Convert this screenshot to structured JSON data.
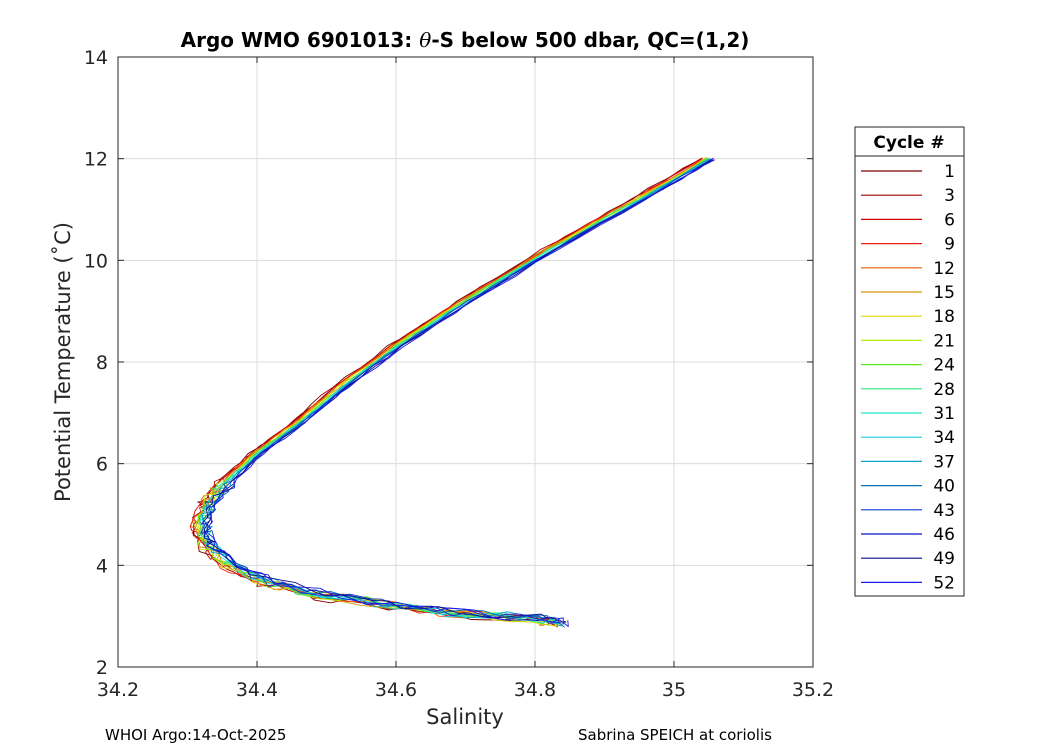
{
  "chart_data": {
    "type": "line",
    "title_parts": [
      "Argo WMO 6901013: ",
      "θ",
      "-S below 500 dbar,  QC=(1,2)"
    ],
    "xlabel": "Salinity",
    "ylabel": "Potential Temperature (˚C)",
    "xlim": [
      34.2,
      35.2
    ],
    "ylim": [
      2,
      14
    ],
    "x_ticks": [
      34.2,
      34.4,
      34.6,
      34.8,
      35,
      35.2
    ],
    "x_tick_labels": [
      "34.2",
      "34.4",
      "34.6",
      "34.8",
      "35",
      "35.2"
    ],
    "y_ticks": [
      2,
      4,
      6,
      8,
      10,
      12,
      14
    ],
    "y_tick_labels": [
      "2",
      "4",
      "6",
      "8",
      "10",
      "12",
      "14"
    ],
    "grid": true,
    "legend": {
      "title": "Cycle #",
      "placement": "right-outside",
      "entries": [
        {
          "label": "1",
          "color": "#7f0000"
        },
        {
          "label": "3",
          "color": "#a30000"
        },
        {
          "label": "6",
          "color": "#d40000"
        },
        {
          "label": "9",
          "color": "#e8220f"
        },
        {
          "label": "12",
          "color": "#f25a00"
        },
        {
          "label": "15",
          "color": "#d49a00"
        },
        {
          "label": "18",
          "color": "#e6d200"
        },
        {
          "label": "21",
          "color": "#b4ee00"
        },
        {
          "label": "24",
          "color": "#62e81a"
        },
        {
          "label": "28",
          "color": "#2ee87a"
        },
        {
          "label": "31",
          "color": "#1ee6c4"
        },
        {
          "label": "34",
          "color": "#14cbe6"
        },
        {
          "label": "37",
          "color": "#0aa6c8"
        },
        {
          "label": "40",
          "color": "#0a73b4"
        },
        {
          "label": "43",
          "color": "#0a3cd2"
        },
        {
          "label": "46",
          "color": "#0a14c8"
        },
        {
          "label": "49",
          "color": "#0a0a8c"
        },
        {
          "label": "52",
          "color": "#1a1ae6"
        }
      ]
    },
    "series_shape": [
      [
        35.05,
        12.0
      ],
      [
        34.95,
        11.2
      ],
      [
        34.82,
        10.2
      ],
      [
        34.7,
        9.2
      ],
      [
        34.6,
        8.3
      ],
      [
        34.52,
        7.5
      ],
      [
        34.46,
        6.8
      ],
      [
        34.4,
        6.2
      ],
      [
        34.36,
        5.7
      ],
      [
        34.33,
        5.2
      ],
      [
        34.32,
        4.8
      ],
      [
        34.33,
        4.4
      ],
      [
        34.36,
        4.0
      ],
      [
        34.42,
        3.65
      ],
      [
        34.5,
        3.4
      ],
      [
        34.6,
        3.2
      ],
      [
        34.7,
        3.05
      ],
      [
        34.8,
        2.95
      ],
      [
        34.84,
        2.85
      ]
    ]
  },
  "footer": {
    "left": "WHOI Argo:14-Oct-2025",
    "right": "Sabrina SPEICH at coriolis"
  }
}
